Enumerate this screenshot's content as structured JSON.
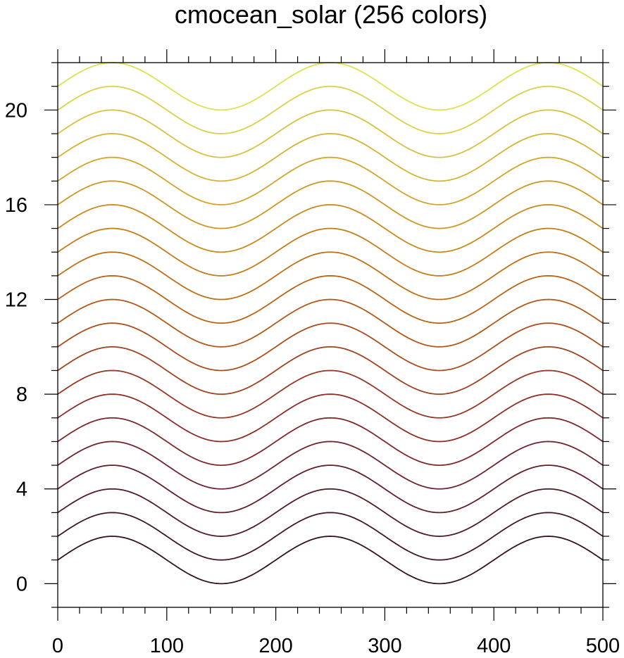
{
  "chart_data": {
    "type": "line",
    "title": "cmocean_solar (256 colors)",
    "xlabel": "",
    "ylabel": "",
    "xlim": [
      0,
      500
    ],
    "ylim": [
      -1,
      22
    ],
    "grid": false,
    "legend": "none",
    "x_ticks": [
      0,
      100,
      200,
      300,
      400,
      500
    ],
    "x_tick_labels": [
      "0",
      "100",
      "200",
      "300",
      "400",
      "500"
    ],
    "y_ticks": [
      0,
      4,
      8,
      12,
      16,
      20
    ],
    "y_tick_labels": [
      "0",
      "4",
      "8",
      "12",
      "16",
      "20"
    ],
    "curve": "y = offset + 1 + sin(2*pi*(x - 0)/200)",
    "x": [
      0,
      25,
      50,
      75,
      100,
      125,
      150,
      175,
      200,
      225,
      250,
      275,
      300,
      325,
      350,
      375,
      400,
      425,
      450,
      475,
      500
    ],
    "series": [
      {
        "offset": 0,
        "color": "#331418",
        "values": [
          1,
          1.71,
          2,
          1.71,
          1,
          0.29,
          0,
          0.29,
          1,
          1.71,
          2,
          1.71,
          1,
          0.29,
          0,
          0.29,
          1,
          1.71,
          2,
          1.71,
          1
        ]
      },
      {
        "offset": 1,
        "color": "#421820",
        "values": [
          2,
          2.71,
          3,
          2.71,
          2,
          1.29,
          1,
          1.29,
          2,
          2.71,
          3,
          2.71,
          2,
          1.29,
          1,
          1.29,
          2,
          2.71,
          3,
          2.71,
          2
        ]
      },
      {
        "offset": 2,
        "color": "#511c25",
        "values": [
          3,
          3.71,
          4,
          3.71,
          3,
          2.29,
          2,
          2.29,
          3,
          3.71,
          4,
          3.71,
          3,
          2.29,
          2,
          2.29,
          3,
          3.71,
          4,
          3.71,
          3
        ]
      },
      {
        "offset": 3,
        "color": "#611f28",
        "values": [
          4,
          4.71,
          5,
          4.71,
          4,
          3.29,
          3,
          3.29,
          4,
          4.71,
          5,
          4.71,
          4,
          3.29,
          3,
          3.29,
          4,
          4.71,
          5,
          4.71,
          4
        ]
      },
      {
        "offset": 4,
        "color": "#70232a",
        "values": [
          5,
          5.71,
          6,
          5.71,
          5,
          4.29,
          4,
          4.29,
          5,
          5.71,
          6,
          5.71,
          5,
          4.29,
          4,
          4.29,
          5,
          5.71,
          6,
          5.71,
          5
        ]
      },
      {
        "offset": 5,
        "color": "#7e2829",
        "values": [
          6,
          6.71,
          7,
          6.71,
          6,
          5.29,
          5,
          5.29,
          6,
          6.71,
          7,
          6.71,
          6,
          5.29,
          5,
          5.29,
          6,
          6.71,
          7,
          6.71,
          6
        ]
      },
      {
        "offset": 6,
        "color": "#8b2f26",
        "values": [
          7,
          7.71,
          8,
          7.71,
          7,
          6.29,
          6,
          6.29,
          7,
          7.71,
          8,
          7.71,
          7,
          6.29,
          6,
          6.29,
          7,
          7.71,
          8,
          7.71,
          7
        ]
      },
      {
        "offset": 7,
        "color": "#963823",
        "values": [
          8,
          8.71,
          9,
          8.71,
          8,
          7.29,
          7,
          7.29,
          8,
          8.71,
          9,
          8.71,
          8,
          7.29,
          7,
          7.29,
          8,
          8.71,
          9,
          8.71,
          8
        ]
      },
      {
        "offset": 8,
        "color": "#a0421f",
        "values": [
          9,
          9.71,
          10,
          9.71,
          9,
          8.29,
          8,
          8.29,
          9,
          9.71,
          10,
          9.71,
          9,
          8.29,
          8,
          8.29,
          9,
          9.71,
          10,
          9.71,
          9
        ]
      },
      {
        "offset": 9,
        "color": "#aa4d1b",
        "values": [
          10,
          10.71,
          11,
          10.71,
          10,
          9.29,
          9,
          9.29,
          10,
          10.71,
          11,
          10.71,
          10,
          9.29,
          9,
          9.29,
          10,
          10.71,
          11,
          10.71,
          10
        ]
      },
      {
        "offset": 10,
        "color": "#b25818",
        "values": [
          11,
          11.71,
          12,
          11.71,
          11,
          10.29,
          10,
          10.29,
          11,
          11.71,
          12,
          11.71,
          11,
          10.29,
          10,
          10.29,
          11,
          11.71,
          12,
          11.71,
          11
        ]
      },
      {
        "offset": 11,
        "color": "#b96416",
        "values": [
          12,
          12.71,
          13,
          12.71,
          12,
          11.29,
          11,
          11.29,
          12,
          12.71,
          13,
          12.71,
          12,
          11.29,
          11,
          11.29,
          12,
          12.71,
          13,
          12.71,
          12
        ]
      },
      {
        "offset": 12,
        "color": "#bf7016",
        "values": [
          13,
          13.71,
          14,
          13.71,
          13,
          12.29,
          12,
          12.29,
          13,
          13.71,
          14,
          13.71,
          13,
          12.29,
          12,
          12.29,
          13,
          13.71,
          14,
          13.71,
          13
        ]
      },
      {
        "offset": 13,
        "color": "#c57d18",
        "values": [
          14,
          14.71,
          15,
          14.71,
          14,
          13.29,
          13,
          13.29,
          14,
          14.71,
          15,
          14.71,
          14,
          13.29,
          13,
          13.29,
          14,
          14.71,
          15,
          14.71,
          14
        ]
      },
      {
        "offset": 14,
        "color": "#ca8a1c",
        "values": [
          15,
          15.71,
          16,
          15.71,
          15,
          14.29,
          14,
          14.29,
          15,
          15.71,
          16,
          15.71,
          15,
          14.29,
          14,
          14.29,
          15,
          15.71,
          16,
          15.71,
          15
        ]
      },
      {
        "offset": 15,
        "color": "#ce9723",
        "values": [
          16,
          16.71,
          17,
          16.71,
          16,
          15.29,
          15,
          15.29,
          16,
          16.71,
          17,
          16.71,
          16,
          15.29,
          15,
          15.29,
          16,
          16.71,
          17,
          16.71,
          16
        ]
      },
      {
        "offset": 16,
        "color": "#d2a52b",
        "values": [
          17,
          17.71,
          18,
          17.71,
          17,
          16.29,
          16,
          16.29,
          17,
          17.71,
          18,
          17.71,
          17,
          16.29,
          16,
          16.29,
          17,
          17.71,
          18,
          17.71,
          17
        ]
      },
      {
        "offset": 17,
        "color": "#d5b335",
        "values": [
          18,
          18.71,
          19,
          18.71,
          18,
          17.29,
          17,
          17.29,
          18,
          18.71,
          19,
          18.71,
          18,
          17.29,
          17,
          17.29,
          18,
          18.71,
          19,
          18.71,
          18
        ]
      },
      {
        "offset": 18,
        "color": "#d8c13f",
        "values": [
          19,
          19.71,
          20,
          19.71,
          19,
          18.29,
          18,
          18.29,
          19,
          19.71,
          20,
          19.71,
          19,
          18.29,
          18,
          18.29,
          19,
          19.71,
          20,
          19.71,
          19
        ]
      },
      {
        "offset": 19,
        "color": "#dbd04a",
        "values": [
          20,
          20.71,
          21,
          20.71,
          20,
          19.29,
          19,
          19.29,
          20,
          20.71,
          21,
          20.71,
          20,
          19.29,
          19,
          19.29,
          20,
          20.71,
          21,
          20.71,
          20
        ]
      },
      {
        "offset": 20,
        "color": "#e0e052",
        "values": [
          21,
          21.71,
          22,
          21.71,
          21,
          20.29,
          20,
          20.29,
          21,
          21.71,
          22,
          21.71,
          21,
          20.29,
          20,
          20.29,
          21,
          21.71,
          22,
          21.71,
          21
        ]
      }
    ]
  }
}
